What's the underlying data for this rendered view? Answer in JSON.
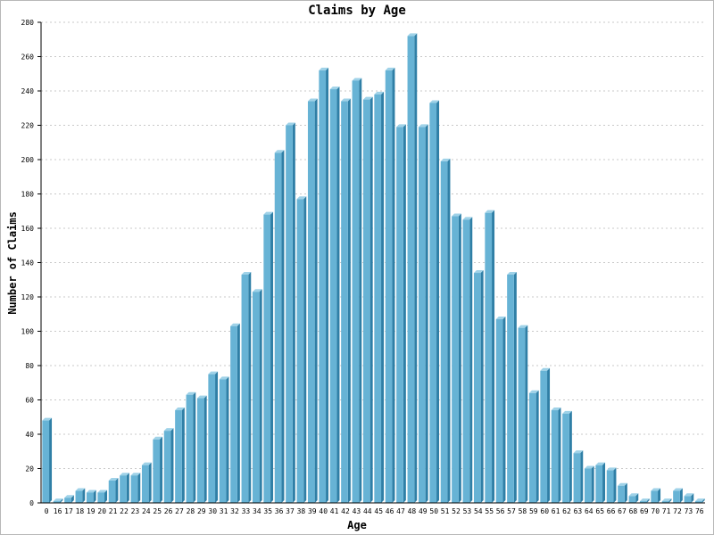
{
  "chart_data": {
    "type": "bar",
    "title": "Claims by Age",
    "xlabel": "Age",
    "ylabel": "Number of Claims",
    "ylim": [
      0,
      280
    ],
    "y_ticks": [
      0,
      20,
      40,
      60,
      80,
      100,
      120,
      140,
      160,
      180,
      200,
      220,
      240,
      260,
      280
    ],
    "grid": true,
    "bar_style": "3d",
    "colors": {
      "bar_front": "#67b3d5",
      "bar_side": "#2f7fa6",
      "bar_top": "#9fd2e8",
      "grid": "#c8c8c8",
      "axis": "#000000"
    },
    "categories": [
      "0",
      "16",
      "17",
      "18",
      "19",
      "20",
      "21",
      "22",
      "23",
      "24",
      "25",
      "26",
      "27",
      "28",
      "29",
      "30",
      "31",
      "32",
      "33",
      "34",
      "35",
      "36",
      "37",
      "38",
      "39",
      "40",
      "41",
      "42",
      "43",
      "44",
      "45",
      "46",
      "47",
      "48",
      "49",
      "50",
      "51",
      "52",
      "53",
      "54",
      "55",
      "56",
      "57",
      "58",
      "59",
      "60",
      "61",
      "62",
      "63",
      "64",
      "65",
      "66",
      "67",
      "68",
      "69",
      "70",
      "71",
      "72",
      "73",
      "76"
    ],
    "values": [
      48,
      1,
      3,
      7,
      6,
      6,
      13,
      16,
      16,
      22,
      37,
      42,
      54,
      63,
      61,
      75,
      72,
      103,
      133,
      123,
      168,
      204,
      220,
      177,
      234,
      252,
      241,
      234,
      246,
      235,
      238,
      252,
      219,
      272,
      219,
      233,
      199,
      167,
      165,
      134,
      169,
      107,
      133,
      102,
      64,
      77,
      54,
      52,
      29,
      20,
      22,
      19,
      10,
      4,
      1,
      7,
      1,
      7,
      4,
      1
    ]
  }
}
